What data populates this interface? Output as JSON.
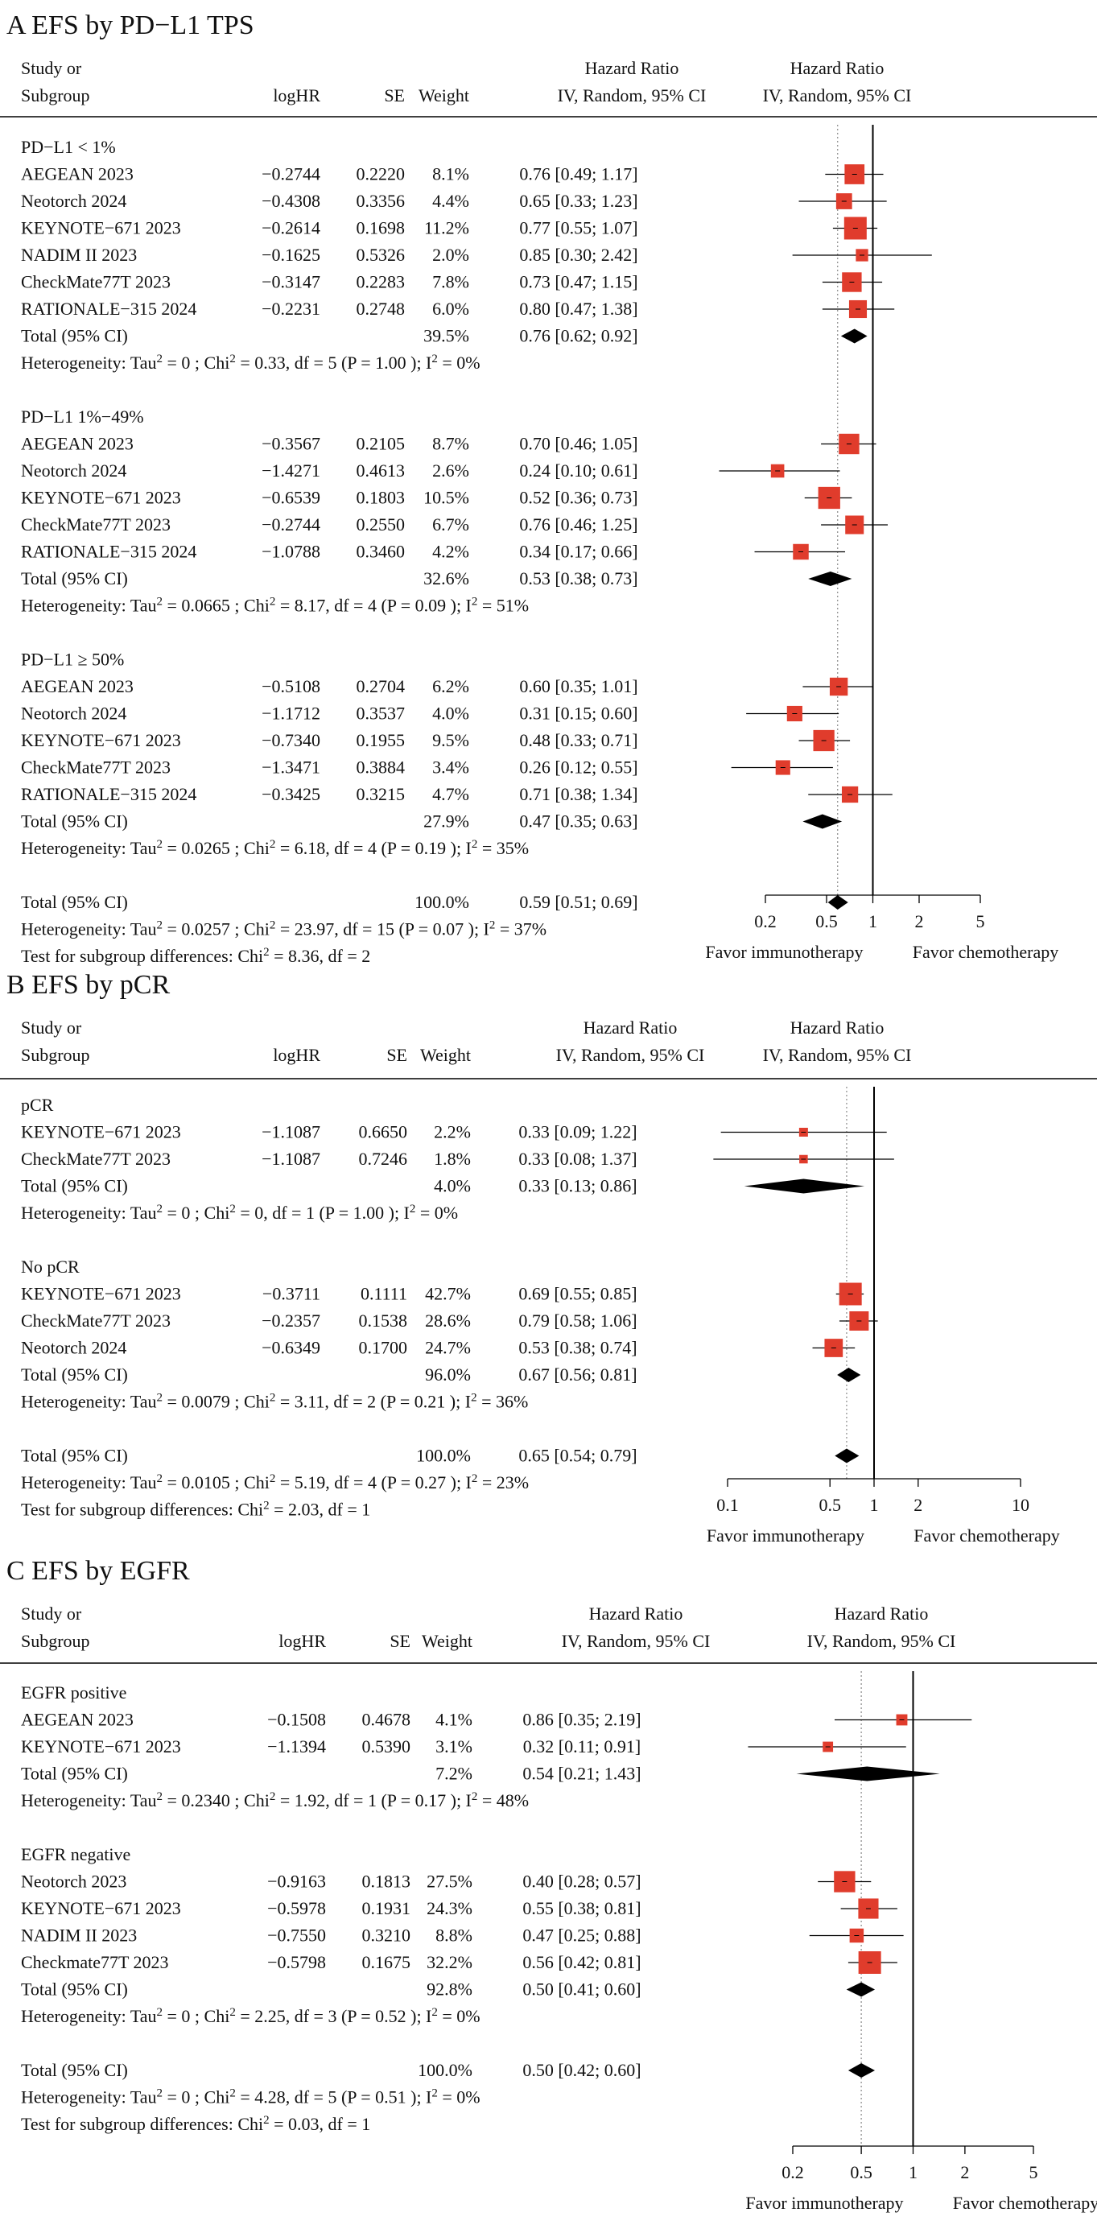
{
  "chart_data": [
    {
      "type": "forest",
      "title": "A  EFS by PD−L1 TPS",
      "columns": {
        "study": [
          "Study or",
          "Subgroup"
        ],
        "loghr": "logHR",
        "se": "SE",
        "weight": "Weight",
        "hr_text": [
          "Hazard Ratio",
          "IV, Random, 95% CI"
        ],
        "hr_plot": [
          "Hazard Ratio",
          "IV, Random, 95% CI"
        ]
      },
      "axis": {
        "scale": "log",
        "ticks": [
          0.2,
          0.5,
          1,
          2,
          5
        ],
        "tick_labels": [
          "0.2",
          "0.5",
          "1",
          "2",
          "5"
        ],
        "range": [
          0.2,
          5
        ],
        "left_label": "Favor immunotherapy",
        "right_label": "Favor chemotherapy",
        "reference_line": 1,
        "overall_line": 0.59
      },
      "subgroups": [
        {
          "name": "PD−L1 < 1%",
          "studies": [
            {
              "label": "AEGEAN  2023",
              "loghr": "−0.2744",
              "se": "0.2220",
              "weight": "8.1%",
              "ci_text": "0.76 [0.49; 1.17]",
              "hr": 0.76,
              "lo": 0.49,
              "hi": 1.17,
              "w": 8.1
            },
            {
              "label": "Neotorch  2024",
              "loghr": "−0.4308",
              "se": "0.3356",
              "weight": "4.4%",
              "ci_text": "0.65 [0.33; 1.23]",
              "hr": 0.65,
              "lo": 0.33,
              "hi": 1.23,
              "w": 4.4
            },
            {
              "label": "KEYNOTE−671  2023",
              "loghr": "−0.2614",
              "se": "0.1698",
              "weight": "11.2%",
              "ci_text": "0.77 [0.55; 1.07]",
              "hr": 0.77,
              "lo": 0.55,
              "hi": 1.07,
              "w": 11.2
            },
            {
              "label": "NADIM II  2023",
              "loghr": "−0.1625",
              "se": "0.5326",
              "weight": "2.0%",
              "ci_text": "0.85 [0.30; 2.42]",
              "hr": 0.85,
              "lo": 0.3,
              "hi": 2.42,
              "w": 2.0
            },
            {
              "label": "CheckMate77T  2023",
              "loghr": "−0.3147",
              "se": "0.2283",
              "weight": "7.8%",
              "ci_text": "0.73 [0.47; 1.15]",
              "hr": 0.73,
              "lo": 0.47,
              "hi": 1.15,
              "w": 7.8
            },
            {
              "label": "RATIONALE−315  2024",
              "loghr": "−0.2231",
              "se": "0.2748",
              "weight": "6.0%",
              "ci_text": "0.80 [0.47; 1.38]",
              "hr": 0.8,
              "lo": 0.47,
              "hi": 1.38,
              "w": 6.0
            }
          ],
          "total": {
            "label": "Total (95% CI)",
            "weight": "39.5%",
            "ci_text": "0.76 [0.62; 0.92]",
            "hr": 0.76,
            "lo": 0.62,
            "hi": 0.92
          },
          "heterogeneity": {
            "lead": "Heterogeneity:   Tau",
            "tau": "= 0",
            "chi": "= 0.33, df = 5",
            "p": "(P = 1.00 );  I",
            "i2": "= 0%"
          }
        },
        {
          "name": "PD−L1 1%−49%",
          "studies": [
            {
              "label": "AEGEAN  2023",
              "loghr": "−0.3567",
              "se": "0.2105",
              "weight": "8.7%",
              "ci_text": "0.70 [0.46; 1.05]",
              "hr": 0.7,
              "lo": 0.46,
              "hi": 1.05,
              "w": 8.7
            },
            {
              "label": "Neotorch  2024",
              "loghr": "−1.4271",
              "se": "0.4613",
              "weight": "2.6%",
              "ci_text": "0.24 [0.10; 0.61]",
              "hr": 0.24,
              "lo": 0.1,
              "hi": 0.61,
              "w": 2.6
            },
            {
              "label": "KEYNOTE−671  2023",
              "loghr": "−0.6539",
              "se": "0.1803",
              "weight": "10.5%",
              "ci_text": "0.52 [0.36; 0.73]",
              "hr": 0.52,
              "lo": 0.36,
              "hi": 0.73,
              "w": 10.5
            },
            {
              "label": "CheckMate77T  2023",
              "loghr": "−0.2744",
              "se": "0.2550",
              "weight": "6.7%",
              "ci_text": "0.76 [0.46; 1.25]",
              "hr": 0.76,
              "lo": 0.46,
              "hi": 1.25,
              "w": 6.7
            },
            {
              "label": "RATIONALE−315  2024",
              "loghr": "−1.0788",
              "se": "0.3460",
              "weight": "4.2%",
              "ci_text": "0.34 [0.17; 0.66]",
              "hr": 0.34,
              "lo": 0.17,
              "hi": 0.66,
              "w": 4.2
            }
          ],
          "total": {
            "label": "Total (95% CI)",
            "weight": "32.6%",
            "ci_text": "0.53 [0.38; 0.73]",
            "hr": 0.53,
            "lo": 0.38,
            "hi": 0.73
          },
          "heterogeneity": {
            "lead": "Heterogeneity:   Tau",
            "tau": "= 0.0665",
            "chi": "= 8.17, df = 4",
            "p": "(P = 0.09 );  I",
            "i2": "= 51%"
          }
        },
        {
          "name": "PD−L1 ≥ 50%",
          "studies": [
            {
              "label": "AEGEAN  2023",
              "loghr": "−0.5108",
              "se": "0.2704",
              "weight": "6.2%",
              "ci_text": "0.60 [0.35; 1.01]",
              "hr": 0.6,
              "lo": 0.35,
              "hi": 1.01,
              "w": 6.2
            },
            {
              "label": "Neotorch  2024",
              "loghr": "−1.1712",
              "se": "0.3537",
              "weight": "4.0%",
              "ci_text": "0.31 [0.15; 0.60]",
              "hr": 0.31,
              "lo": 0.15,
              "hi": 0.6,
              "w": 4.0
            },
            {
              "label": "KEYNOTE−671  2023",
              "loghr": "−0.7340",
              "se": "0.1955",
              "weight": "9.5%",
              "ci_text": "0.48 [0.33; 0.71]",
              "hr": 0.48,
              "lo": 0.33,
              "hi": 0.71,
              "w": 9.5
            },
            {
              "label": "CheckMate77T  2023",
              "loghr": "−1.3471",
              "se": "0.3884",
              "weight": "3.4%",
              "ci_text": "0.26 [0.12; 0.55]",
              "hr": 0.26,
              "lo": 0.12,
              "hi": 0.55,
              "w": 3.4
            },
            {
              "label": "RATIONALE−315  2024",
              "loghr": "−0.3425",
              "se": "0.3215",
              "weight": "4.7%",
              "ci_text": "0.71 [0.38; 1.34]",
              "hr": 0.71,
              "lo": 0.38,
              "hi": 1.34,
              "w": 4.7
            }
          ],
          "total": {
            "label": "Total (95% CI)",
            "weight": "27.9%",
            "ci_text": "0.47 [0.35; 0.63]",
            "hr": 0.47,
            "lo": 0.35,
            "hi": 0.63
          },
          "heterogeneity": {
            "lead": "Heterogeneity:   Tau",
            "tau": "= 0.0265",
            "chi": "= 6.18, df = 4",
            "p": "(P = 0.19 );  I",
            "i2": "= 35%"
          }
        }
      ],
      "overall": {
        "label": "Total (95% CI)",
        "weight": "100.0%",
        "ci_text": "0.59 [0.51; 0.69]",
        "hr": 0.59,
        "lo": 0.51,
        "hi": 0.69,
        "heterogeneity": {
          "lead": "Heterogeneity:   Tau",
          "tau": "= 0.0257",
          "chi": "= 23.97, df = 15",
          "p": "(P = 0.07 );  I",
          "i2": "= 37%"
        },
        "subgroup_test": {
          "lead": "Test for subgroup differences:",
          "chi": "= 8.36, df = 2"
        }
      }
    },
    {
      "type": "forest",
      "title": "B  EFS by pCR",
      "columns": {
        "study": [
          "Study or",
          "Subgroup"
        ],
        "loghr": "logHR",
        "se": "SE",
        "weight": "Weight",
        "hr_text": [
          "Hazard Ratio",
          "IV, Random, 95% CI"
        ],
        "hr_plot": [
          "Hazard Ratio",
          "IV, Random, 95% CI"
        ]
      },
      "axis": {
        "scale": "log",
        "ticks": [
          0.1,
          0.5,
          1,
          2,
          10
        ],
        "tick_labels": [
          "0.1",
          "0.5",
          "1",
          "2",
          "10"
        ],
        "range": [
          0.1,
          10
        ],
        "left_label": "Favor immunotherapy",
        "right_label": "Favor chemotherapy",
        "reference_line": 1,
        "overall_line": 0.65
      },
      "subgroups": [
        {
          "name": "pCR",
          "studies": [
            {
              "label": "KEYNOTE−671  2023",
              "loghr": "−1.1087",
              "se": "0.6650",
              "weight": "2.2%",
              "ci_text": "0.33 [0.09; 1.22]",
              "hr": 0.33,
              "lo": 0.09,
              "hi": 1.22,
              "w": 2.2
            },
            {
              "label": "CheckMate77T  2023",
              "loghr": "−1.1087",
              "se": "0.7246",
              "weight": "1.8%",
              "ci_text": "0.33 [0.08; 1.37]",
              "hr": 0.33,
              "lo": 0.08,
              "hi": 1.37,
              "w": 1.8
            }
          ],
          "total": {
            "label": "Total (95% CI)",
            "weight": "4.0%",
            "ci_text": "0.33 [0.13; 0.86]",
            "hr": 0.33,
            "lo": 0.13,
            "hi": 0.86
          },
          "heterogeneity": {
            "lead": "Heterogeneity:   Tau",
            "tau": "= 0",
            "chi": "= 0, df = 1",
            "p": "(P = 1.00 );  I",
            "i2": "= 0%"
          }
        },
        {
          "name": "No pCR",
          "studies": [
            {
              "label": "KEYNOTE−671  2023",
              "loghr": "−0.3711",
              "se": "0.1111",
              "weight": "42.7%",
              "ci_text": "0.69 [0.55; 0.85]",
              "hr": 0.69,
              "lo": 0.55,
              "hi": 0.85,
              "w": 42.7
            },
            {
              "label": "CheckMate77T  2023",
              "loghr": "−0.2357",
              "se": "0.1538",
              "weight": "28.6%",
              "ci_text": "0.79 [0.58; 1.06]",
              "hr": 0.79,
              "lo": 0.58,
              "hi": 1.06,
              "w": 28.6
            },
            {
              "label": "Neotorch  2024",
              "loghr": "−0.6349",
              "se": "0.1700",
              "weight": "24.7%",
              "ci_text": "0.53 [0.38; 0.74]",
              "hr": 0.53,
              "lo": 0.38,
              "hi": 0.74,
              "w": 24.7
            }
          ],
          "total": {
            "label": "Total (95% CI)",
            "weight": "96.0%",
            "ci_text": "0.67 [0.56; 0.81]",
            "hr": 0.67,
            "lo": 0.56,
            "hi": 0.81
          },
          "heterogeneity": {
            "lead": "Heterogeneity:   Tau",
            "tau": "= 0.0079",
            "chi": "= 3.11, df = 2",
            "p": "(P = 0.21 );  I",
            "i2": "= 36%"
          }
        }
      ],
      "overall": {
        "label": "Total (95% CI)",
        "weight": "100.0%",
        "ci_text": "0.65 [0.54; 0.79]",
        "hr": 0.65,
        "lo": 0.54,
        "hi": 0.79,
        "heterogeneity": {
          "lead": "Heterogeneity:   Tau",
          "tau": "= 0.0105",
          "chi": "= 5.19, df = 4",
          "p": "(P = 0.27 );  I",
          "i2": "= 23%"
        },
        "subgroup_test": {
          "lead": "Test for subgroup differences:",
          "chi": "= 2.03, df = 1"
        }
      }
    },
    {
      "type": "forest",
      "title": "C  EFS by EGFR",
      "columns": {
        "study": [
          "Study or",
          "Subgroup"
        ],
        "loghr": "logHR",
        "se": "SE",
        "weight": "Weight",
        "hr_text": [
          "Hazard Ratio",
          "IV, Random, 95% CI"
        ],
        "hr_plot": [
          "Hazard Ratio",
          "IV, Random, 95% CI"
        ]
      },
      "axis": {
        "scale": "log",
        "ticks": [
          0.2,
          0.5,
          1,
          2,
          5
        ],
        "tick_labels": [
          "0.2",
          "0.5",
          "1",
          "2",
          "5"
        ],
        "range": [
          0.2,
          5
        ],
        "left_label": "Favor immunotherapy",
        "right_label": "Favor chemotherapy",
        "reference_line": 1,
        "overall_line": 0.5
      },
      "subgroups": [
        {
          "name": "EGFR positive",
          "studies": [
            {
              "label": "AEGEAN  2023",
              "loghr": "−0.1508",
              "se": "0.4678",
              "weight": "4.1%",
              "ci_text": "0.86 [0.35; 2.19]",
              "hr": 0.86,
              "lo": 0.35,
              "hi": 2.19,
              "w": 4.1
            },
            {
              "label": "KEYNOTE−671  2023",
              "loghr": "−1.1394",
              "se": "0.5390",
              "weight": "3.1%",
              "ci_text": "0.32 [0.11; 0.91]",
              "hr": 0.32,
              "lo": 0.11,
              "hi": 0.91,
              "w": 3.1
            }
          ],
          "total": {
            "label": "Total (95% CI)",
            "weight": "7.2%",
            "ci_text": "0.54 [0.21; 1.43]",
            "hr": 0.54,
            "lo": 0.21,
            "hi": 1.43
          },
          "heterogeneity": {
            "lead": "Heterogeneity:   Tau",
            "tau": "= 0.2340",
            "chi": "= 1.92, df = 1",
            "p": "(P = 0.17 );  I",
            "i2": "= 48%"
          }
        },
        {
          "name": "EGFR negative",
          "studies": [
            {
              "label": "Neotorch  2023",
              "loghr": "−0.9163",
              "se": "0.1813",
              "weight": "27.5%",
              "ci_text": "0.40 [0.28; 0.57]",
              "hr": 0.4,
              "lo": 0.28,
              "hi": 0.57,
              "w": 27.5
            },
            {
              "label": "KEYNOTE−671  2023",
              "loghr": "−0.5978",
              "se": "0.1931",
              "weight": "24.3%",
              "ci_text": "0.55 [0.38; 0.81]",
              "hr": 0.55,
              "lo": 0.38,
              "hi": 0.81,
              "w": 24.3
            },
            {
              "label": "NADIM II  2023",
              "loghr": "−0.7550",
              "se": "0.3210",
              "weight": "8.8%",
              "ci_text": "0.47 [0.25; 0.88]",
              "hr": 0.47,
              "lo": 0.25,
              "hi": 0.88,
              "w": 8.8
            },
            {
              "label": "Checkmate77T  2023",
              "loghr": "−0.5798",
              "se": "0.1675",
              "weight": "32.2%",
              "ci_text": "0.56 [0.42; 0.81]",
              "hr": 0.56,
              "lo": 0.42,
              "hi": 0.81,
              "w": 32.2
            }
          ],
          "total": {
            "label": "Total (95% CI)",
            "weight": "92.8%",
            "ci_text": "0.50 [0.41; 0.60]",
            "hr": 0.5,
            "lo": 0.41,
            "hi": 0.6
          },
          "heterogeneity": {
            "lead": "Heterogeneity:   Tau",
            "tau": "= 0",
            "chi": "= 2.25, df = 3",
            "p": "(P = 0.52 );  I",
            "i2": "= 0%"
          }
        }
      ],
      "overall": {
        "label": "Total (95% CI)",
        "weight": "100.0%",
        "ci_text": "0.50 [0.42; 0.60]",
        "hr": 0.5,
        "lo": 0.42,
        "hi": 0.6,
        "heterogeneity": {
          "lead": "Heterogeneity:   Tau",
          "tau": "= 0",
          "chi": "= 4.28, df = 5",
          "p": "(P = 0.51 );  I",
          "i2": "= 0%"
        },
        "subgroup_test": {
          "lead": "Test for subgroup differences:",
          "chi": "= 0.03, df = 1"
        }
      }
    }
  ],
  "colors": {
    "box": "#e03c2c",
    "diamond": "#000000",
    "line": "#000000",
    "dotted": "#888888"
  },
  "symbols": {
    "chi": "Chi",
    "sup": "2"
  }
}
